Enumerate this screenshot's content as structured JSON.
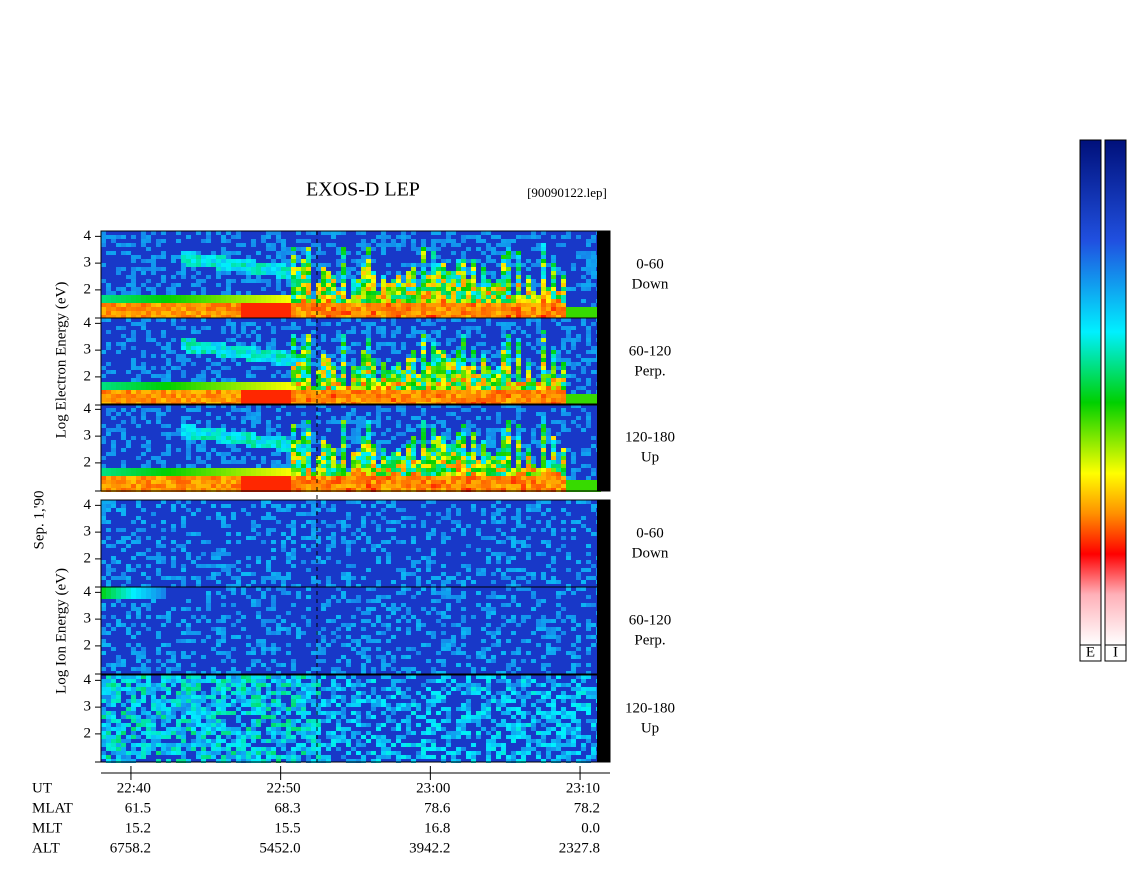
{
  "chart_data": {
    "type": "spectrogram",
    "title": "EXOS-D LEP",
    "file_label": "[90090122.lep]",
    "date_label": "Sep. 1,'90",
    "groups": [
      {
        "label": "Log Electron Energy (eV)",
        "panels": [
          {
            "angle": "0-60",
            "direction": "Down"
          },
          {
            "angle": "60-120",
            "direction": "Perp."
          },
          {
            "angle": "120-180",
            "direction": "Up"
          }
        ]
      },
      {
        "label": "Log Ion Energy (eV)",
        "panels": [
          {
            "angle": "0-60",
            "direction": "Down"
          },
          {
            "angle": "60-120",
            "direction": "Perp."
          },
          {
            "angle": "120-180",
            "direction": "Up"
          }
        ]
      }
    ],
    "ylim": [
      0.95,
      4.2
    ],
    "yticks": [
      2,
      3,
      4
    ],
    "xlim": [
      1358,
      1392
    ],
    "xlabel": "UT",
    "xticks": [
      {
        "value": 1360,
        "label": "22:40"
      },
      {
        "value": 1370,
        "label": "22:50"
      },
      {
        "value": 1380,
        "label": "23:00"
      },
      {
        "value": 1390,
        "label": "23:10"
      }
    ],
    "orbit": [
      {
        "name": "MLAT",
        "values": [
          "61.5",
          "68.3",
          "78.6",
          "78.2"
        ]
      },
      {
        "name": "MLT",
        "values": [
          "15.2",
          "15.5",
          "16.8",
          "0.0"
        ]
      },
      {
        "name": "ALT",
        "values": [
          "6758.2",
          "5452.0",
          "3942.2",
          "2327.8"
        ]
      }
    ],
    "colorbar_labels": [
      "E",
      "I"
    ]
  }
}
